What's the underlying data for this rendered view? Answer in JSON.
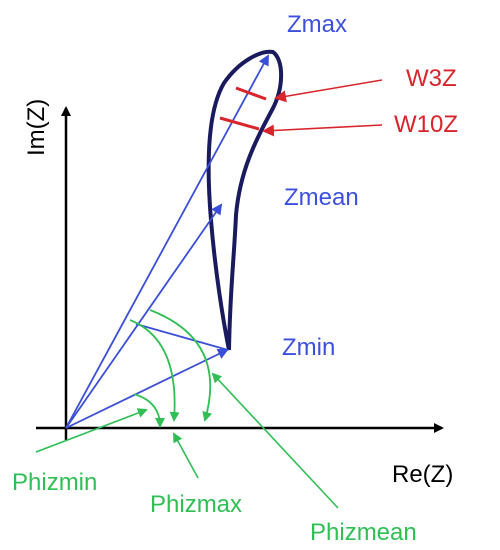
{
  "axes": {
    "x_label": "Re(Z)",
    "y_label": "Im(Z)"
  },
  "points": {
    "zmax": "Zmax",
    "zmean": "Zmean",
    "zmin": "Zmin"
  },
  "widths": {
    "w3z": "W3Z",
    "w10z": "W10Z"
  },
  "angles": {
    "phizmin": "Phizmin",
    "phizmax": "Phizmax",
    "phizmean": "Phizmean"
  },
  "colors": {
    "axis": "#000000",
    "loop": "#1a1a5e",
    "vector": "#3b4fd6",
    "point_label": "#3d4fe0",
    "width_marker": "#d8242a",
    "angle": "#2fbf55"
  }
}
